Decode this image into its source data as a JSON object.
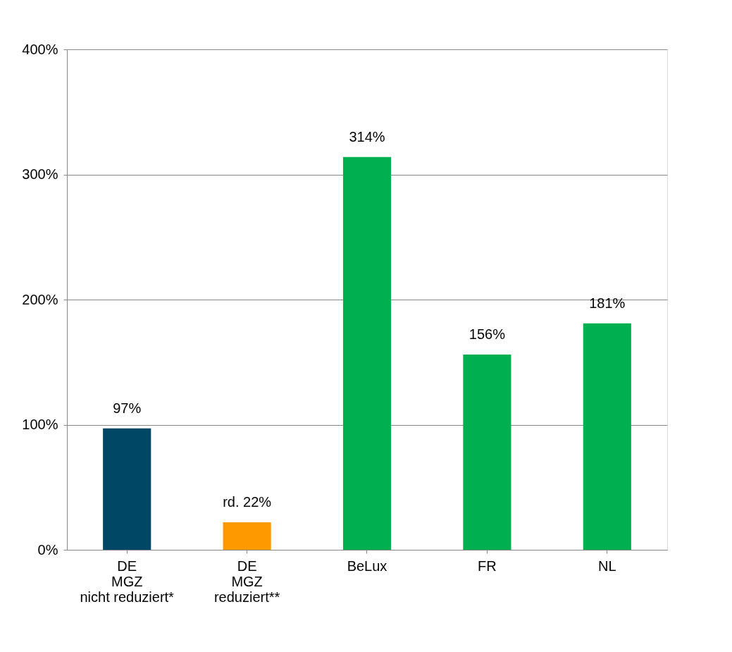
{
  "chart_data": {
    "type": "bar",
    "categories": [
      "DE\nMGZ\nnicht reduziert*",
      "DE\nMGZ\nreduziert**",
      "BeLux",
      "FR",
      "NL"
    ],
    "values": [
      97,
      22,
      314,
      156,
      181
    ],
    "colors": [
      "#004766",
      "#ff9900",
      "#00b050",
      "#00b050",
      "#00b050"
    ],
    "value_labels": [
      "97%",
      "rd. 22%",
      "314%",
      "156%",
      "181%"
    ],
    "ylim": [
      0,
      400
    ],
    "yticks": [
      {
        "value": 0,
        "label": "0%"
      },
      {
        "value": 100,
        "label": "100%"
      },
      {
        "value": 200,
        "label": "200%"
      },
      {
        "value": 300,
        "label": "300%"
      },
      {
        "value": 400,
        "label": "400%"
      }
    ],
    "grid": "y"
  }
}
